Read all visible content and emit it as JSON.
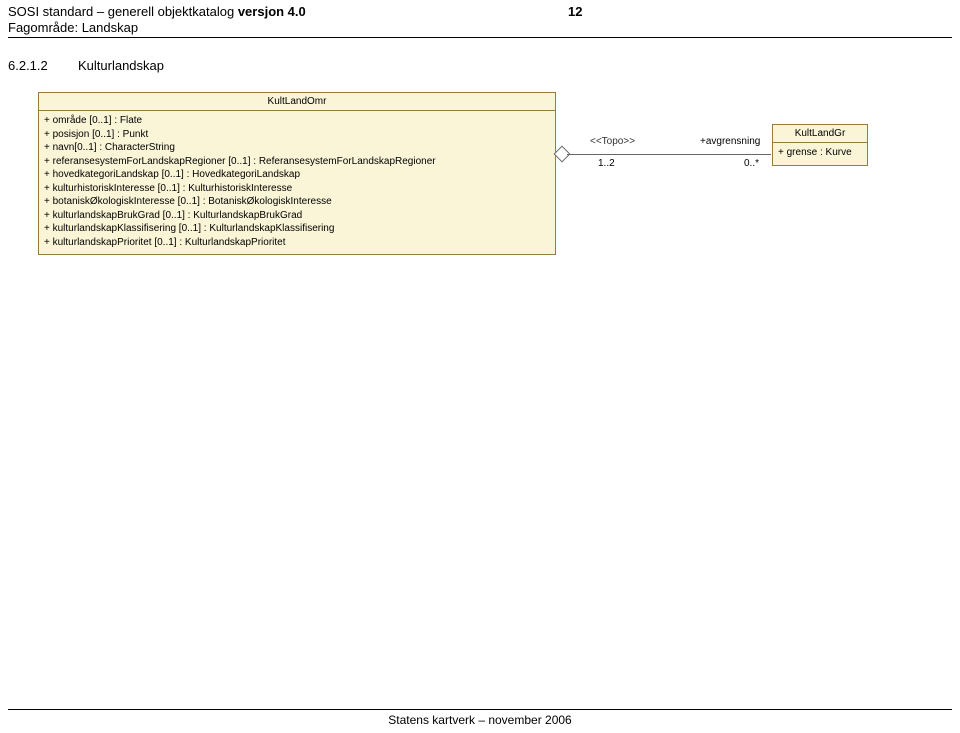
{
  "header": {
    "title_prefix": "SOSI standard – generell objektkatalog",
    "version_label": "versjon 4.0",
    "page_number": "12",
    "line2": "Fagområde: Landskap"
  },
  "section": {
    "number": "6.2.1.2",
    "title": "Kulturlandskap"
  },
  "box_left": {
    "title": "KultLandOmr",
    "attrs": [
      "+ område [0..1] : Flate",
      "+ posisjon [0..1] : Punkt",
      "+ navn[0..1] : CharacterString",
      "+ referansesystemForLandskapRegioner [0..1] : ReferansesystemForLandskapRegioner",
      "+ hovedkategoriLandskap [0..1] : HovedkategoriLandskap",
      "+ kulturhistoriskInteresse [0..1] : KulturhistoriskInteresse",
      "+ botaniskØkologiskInteresse [0..1] : BotaniskØkologiskInteresse",
      "+ kulturlandskapBrukGrad [0..1] : KulturlandskapBrukGrad",
      "+ kulturlandskapKlassifisering [0..1] : KulturlandskapKlassifisering",
      "+ kulturlandskapPrioritet [0..1] : KulturlandskapPrioritet"
    ]
  },
  "box_right": {
    "title": "KultLandGr",
    "attrs": [
      "+ grense : Kurve"
    ]
  },
  "assoc": {
    "stereotype": "<<Topo>>",
    "mult_left": "1..2",
    "role": "+avgrensning",
    "mult_right": "0..*"
  },
  "footer": "Statens kartverk – november 2006",
  "colors": {
    "box_fill": "#faf5d7",
    "box_border": "#9a7c3a",
    "line": "#666666"
  }
}
